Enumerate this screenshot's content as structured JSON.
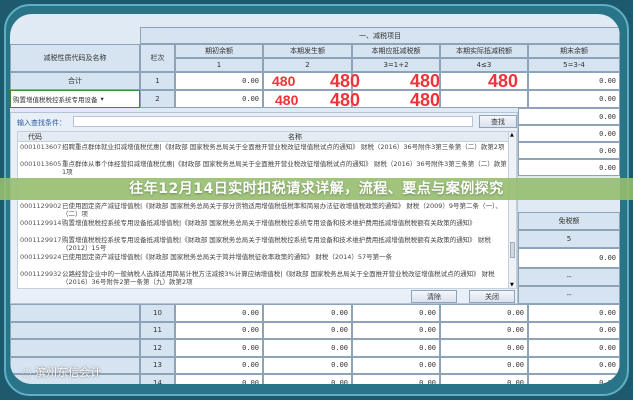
{
  "table": {
    "section_title": "一、减税项目",
    "headers": [
      "减税性质代码及名称",
      "栏次",
      "期初余额",
      "本期发生额",
      "本期应抵减税额",
      "本期实际抵减税额",
      "期末余额"
    ],
    "subheaders": [
      "1",
      "2",
      "3=1+2",
      "4≤3",
      "5=3-4"
    ],
    "total_row": {
      "name": "合计",
      "line": "1",
      "values": [
        "0.00",
        "",
        "",
        "",
        "0.00"
      ]
    },
    "row2": {
      "name": "购置增值税税控系统专用设备",
      "line": "2",
      "values": [
        "0.00",
        "",
        "",
        "",
        "0.00"
      ]
    },
    "overlay_value": "480",
    "right_column_values": [
      "0.00",
      "0.00",
      "0.00",
      "0.00"
    ],
    "exempt_header": "免税额",
    "exempt_sub": "5",
    "exempt_value": "0.00",
    "dash": "--",
    "bottom_rows": [
      {
        "line": "10",
        "values": [
          "0.00",
          "0.00",
          "0.00",
          "0.00",
          "0.00"
        ]
      },
      {
        "line": "11",
        "values": [
          "0.00",
          "0.00",
          "0.00",
          "0.00",
          "0.00"
        ]
      },
      {
        "line": "12",
        "values": [
          "0.00",
          "0.00",
          "0.00",
          "0.00",
          "0.00"
        ]
      },
      {
        "line": "13",
        "values": [
          "0.00",
          "0.00",
          "0.00",
          "0.00",
          "0.00"
        ]
      },
      {
        "line": "14",
        "values": [
          "0.00",
          "0.00",
          "0.00",
          "0.00",
          "0.00"
        ]
      }
    ]
  },
  "dialog": {
    "search_label": "输入查找条件：",
    "search_value": "",
    "search_button": "查找",
    "col_code": "代码",
    "col_name": "名称",
    "items": [
      {
        "code": "0001013607",
        "name": "招聘重点群体就业扣减增值税优惠|《财政部 国家税务总局关于全面推开营业税改征增值税试点的通知》 财税（2016）36号附件3第三条第（二）款第2项"
      },
      {
        "code": "0001013605",
        "name": "重点群体从事个体经营扣减增值税优惠|《财政部 国家税务总局关于全面推开营业税改征增值税试点的通知》 财税（2016）36号附件3第三条第（二）款第1项"
      },
      {
        "code": "0001129902",
        "name": "已使用固定资产减征增值税|《财政部 国家税务总局关于部分货物适用增值税低税率和简易办法征收增值税政策的通知》 财税（2009）9号第二条（一）、（二）项"
      },
      {
        "code": "0001129914",
        "name": "购置增值税税控系统专用设备抵减增值税|《财政部 国家税务总局关于增值税税控系统专用设备和技术维护费用抵减增值税税额有关政策的通知》"
      },
      {
        "code": "0001129917",
        "name": "购置增值税税控系统专用设备抵减增值税|《财政部 国家税务总局关于增值税税控系统专用设备和技术维护费用抵减增值税税额有关政策的通知》 财税（2012）15号"
      },
      {
        "code": "0001129924",
        "name": "已使用固定资产减征增值税|《财政部 国家税务总局关于简并增值税征收率政策的通知》 财税（2014）57号第一条"
      },
      {
        "code": "0001129932",
        "name": "公路经营企业中的一般纳税人选择适用简易计税方法减按3%计算应纳增值税|《财政部 国家税务总局关于全面推开营业税改征增值税试点的通知》 财税（2016）36号附件2第一条第（九）款第2项"
      }
    ],
    "clear_button": "清除",
    "close_button": "关闭"
  },
  "banner_title": "往年12月14日实时扣税请求详解，流程、要点与案例探究",
  "watermark": "滨州东信会计"
}
